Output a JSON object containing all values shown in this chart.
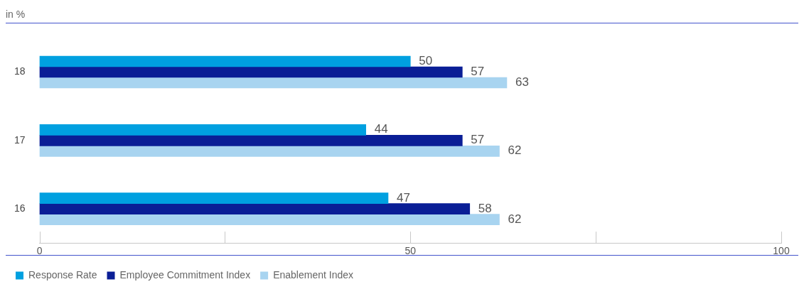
{
  "chart_data": {
    "type": "bar",
    "orientation": "horizontal",
    "subtitle": "in %",
    "categories": [
      "18",
      "17",
      "16"
    ],
    "series": [
      {
        "name": "Response Rate",
        "color": "#00a0e0",
        "values": [
          50,
          44,
          47
        ]
      },
      {
        "name": "Employee Commitment Index",
        "color": "#0a1e96",
        "values": [
          57,
          57,
          58
        ]
      },
      {
        "name": "Enablement Index",
        "color": "#a8d4f0",
        "values": [
          63,
          62,
          62
        ]
      }
    ],
    "xlim": [
      0,
      100
    ],
    "xticks": [
      0,
      {
        "value": 25,
        "label": null
      },
      50,
      {
        "value": 75,
        "label": null
      },
      100
    ],
    "data_labels": true,
    "grid": false,
    "legend": "bottom left"
  }
}
